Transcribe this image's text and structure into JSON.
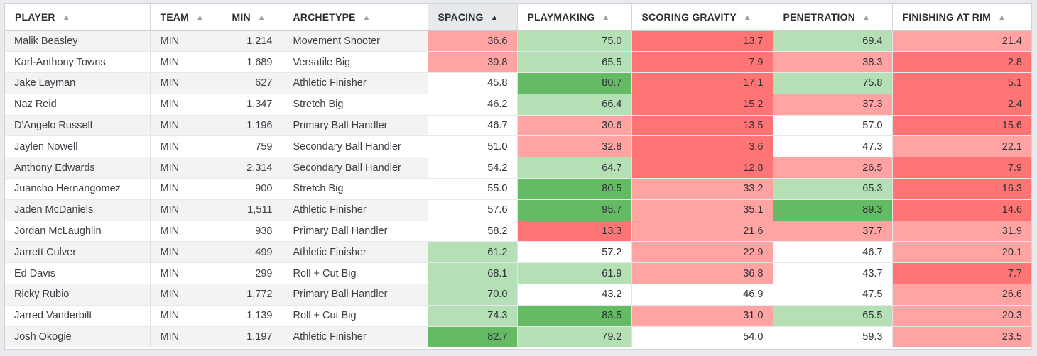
{
  "colors": {
    "red_strong": "#ff7474",
    "red_light": "#ffa3a3",
    "green_light": "#b5dfb5",
    "green_strong": "#64bb64",
    "neutral": "#ffffff"
  },
  "table": {
    "columns": [
      {
        "key": "player",
        "label": "PLAYER",
        "sort_icon": "sort-asc-icon"
      },
      {
        "key": "team",
        "label": "TEAM",
        "sort_icon": "sort-asc-icon"
      },
      {
        "key": "min",
        "label": "MIN",
        "sort_icon": "sort-asc-icon"
      },
      {
        "key": "archetype",
        "label": "ARCHETYPE",
        "sort_icon": "sort-asc-icon"
      },
      {
        "key": "spacing",
        "label": "SPACING",
        "sort_icon": "sort-asc-icon",
        "sorted": true
      },
      {
        "key": "playmaking",
        "label": "PLAYMAKING",
        "sort_icon": "sort-asc-icon"
      },
      {
        "key": "scoring_gravity",
        "label": "SCORING GRAVITY",
        "sort_icon": "sort-asc-icon"
      },
      {
        "key": "penetration",
        "label": "PENETRATION",
        "sort_icon": "sort-asc-icon"
      },
      {
        "key": "finishing",
        "label": "FINISHING AT RIM",
        "sort_icon": "sort-asc-icon"
      }
    ],
    "rows": [
      {
        "player": "Malik Beasley",
        "team": "MIN",
        "min": "1,214",
        "archetype": "Movement Shooter",
        "spacing": {
          "v": "36.6",
          "c": "red_light"
        },
        "playmaking": {
          "v": "75.0",
          "c": "green_light"
        },
        "scoring_gravity": {
          "v": "13.7",
          "c": "red_strong"
        },
        "penetration": {
          "v": "69.4",
          "c": "green_light"
        },
        "finishing": {
          "v": "21.4",
          "c": "red_light"
        }
      },
      {
        "player": "Karl-Anthony Towns",
        "team": "MIN",
        "min": "1,689",
        "archetype": "Versatile Big",
        "spacing": {
          "v": "39.8",
          "c": "red_light"
        },
        "playmaking": {
          "v": "65.5",
          "c": "green_light"
        },
        "scoring_gravity": {
          "v": "7.9",
          "c": "red_strong"
        },
        "penetration": {
          "v": "38.3",
          "c": "red_light"
        },
        "finishing": {
          "v": "2.8",
          "c": "red_strong"
        }
      },
      {
        "player": "Jake Layman",
        "team": "MIN",
        "min": "627",
        "archetype": "Athletic Finisher",
        "spacing": {
          "v": "45.8",
          "c": "neutral"
        },
        "playmaking": {
          "v": "80.7",
          "c": "green_strong"
        },
        "scoring_gravity": {
          "v": "17.1",
          "c": "red_strong"
        },
        "penetration": {
          "v": "75.8",
          "c": "green_light"
        },
        "finishing": {
          "v": "5.1",
          "c": "red_strong"
        }
      },
      {
        "player": "Naz Reid",
        "team": "MIN",
        "min": "1,347",
        "archetype": "Stretch Big",
        "spacing": {
          "v": "46.2",
          "c": "neutral"
        },
        "playmaking": {
          "v": "66.4",
          "c": "green_light"
        },
        "scoring_gravity": {
          "v": "15.2",
          "c": "red_strong"
        },
        "penetration": {
          "v": "37.3",
          "c": "red_light"
        },
        "finishing": {
          "v": "2.4",
          "c": "red_strong"
        }
      },
      {
        "player": "D'Angelo Russell",
        "team": "MIN",
        "min": "1,196",
        "archetype": "Primary Ball Handler",
        "spacing": {
          "v": "46.7",
          "c": "neutral"
        },
        "playmaking": {
          "v": "30.6",
          "c": "red_light"
        },
        "scoring_gravity": {
          "v": "13.5",
          "c": "red_strong"
        },
        "penetration": {
          "v": "57.0",
          "c": "neutral"
        },
        "finishing": {
          "v": "15.6",
          "c": "red_strong"
        }
      },
      {
        "player": "Jaylen Nowell",
        "team": "MIN",
        "min": "759",
        "archetype": "Secondary Ball Handler",
        "spacing": {
          "v": "51.0",
          "c": "neutral"
        },
        "playmaking": {
          "v": "32.8",
          "c": "red_light"
        },
        "scoring_gravity": {
          "v": "3.6",
          "c": "red_strong"
        },
        "penetration": {
          "v": "47.3",
          "c": "neutral"
        },
        "finishing": {
          "v": "22.1",
          "c": "red_light"
        }
      },
      {
        "player": "Anthony Edwards",
        "team": "MIN",
        "min": "2,314",
        "archetype": "Secondary Ball Handler",
        "spacing": {
          "v": "54.2",
          "c": "neutral"
        },
        "playmaking": {
          "v": "64.7",
          "c": "green_light"
        },
        "scoring_gravity": {
          "v": "12.8",
          "c": "red_strong"
        },
        "penetration": {
          "v": "26.5",
          "c": "red_light"
        },
        "finishing": {
          "v": "7.9",
          "c": "red_strong"
        }
      },
      {
        "player": "Juancho Hernangomez",
        "team": "MIN",
        "min": "900",
        "archetype": "Stretch Big",
        "spacing": {
          "v": "55.0",
          "c": "neutral"
        },
        "playmaking": {
          "v": "80.5",
          "c": "green_strong"
        },
        "scoring_gravity": {
          "v": "33.2",
          "c": "red_light"
        },
        "penetration": {
          "v": "65.3",
          "c": "green_light"
        },
        "finishing": {
          "v": "16.3",
          "c": "red_strong"
        }
      },
      {
        "player": "Jaden McDaniels",
        "team": "MIN",
        "min": "1,511",
        "archetype": "Athletic Finisher",
        "spacing": {
          "v": "57.6",
          "c": "neutral"
        },
        "playmaking": {
          "v": "95.7",
          "c": "green_strong"
        },
        "scoring_gravity": {
          "v": "35.1",
          "c": "red_light"
        },
        "penetration": {
          "v": "89.3",
          "c": "green_strong"
        },
        "finishing": {
          "v": "14.6",
          "c": "red_strong"
        }
      },
      {
        "player": "Jordan McLaughlin",
        "team": "MIN",
        "min": "938",
        "archetype": "Primary Ball Handler",
        "spacing": {
          "v": "58.2",
          "c": "neutral"
        },
        "playmaking": {
          "v": "13.3",
          "c": "red_strong"
        },
        "scoring_gravity": {
          "v": "21.6",
          "c": "red_light"
        },
        "penetration": {
          "v": "37.7",
          "c": "red_light"
        },
        "finishing": {
          "v": "31.9",
          "c": "red_light"
        }
      },
      {
        "player": "Jarrett Culver",
        "team": "MIN",
        "min": "499",
        "archetype": "Athletic Finisher",
        "spacing": {
          "v": "61.2",
          "c": "green_light"
        },
        "playmaking": {
          "v": "57.2",
          "c": "neutral"
        },
        "scoring_gravity": {
          "v": "22.9",
          "c": "red_light"
        },
        "penetration": {
          "v": "46.7",
          "c": "neutral"
        },
        "finishing": {
          "v": "20.1",
          "c": "red_light"
        }
      },
      {
        "player": "Ed Davis",
        "team": "MIN",
        "min": "299",
        "archetype": "Roll + Cut Big",
        "spacing": {
          "v": "68.1",
          "c": "green_light"
        },
        "playmaking": {
          "v": "61.9",
          "c": "green_light"
        },
        "scoring_gravity": {
          "v": "36.8",
          "c": "red_light"
        },
        "penetration": {
          "v": "43.7",
          "c": "neutral"
        },
        "finishing": {
          "v": "7.7",
          "c": "red_strong"
        }
      },
      {
        "player": "Ricky Rubio",
        "team": "MIN",
        "min": "1,772",
        "archetype": "Primary Ball Handler",
        "spacing": {
          "v": "70.0",
          "c": "green_light"
        },
        "playmaking": {
          "v": "43.2",
          "c": "neutral"
        },
        "scoring_gravity": {
          "v": "46.9",
          "c": "neutral"
        },
        "penetration": {
          "v": "47.5",
          "c": "neutral"
        },
        "finishing": {
          "v": "26.6",
          "c": "red_light"
        }
      },
      {
        "player": "Jarred Vanderbilt",
        "team": "MIN",
        "min": "1,139",
        "archetype": "Roll + Cut Big",
        "spacing": {
          "v": "74.3",
          "c": "green_light"
        },
        "playmaking": {
          "v": "83.5",
          "c": "green_strong"
        },
        "scoring_gravity": {
          "v": "31.0",
          "c": "red_light"
        },
        "penetration": {
          "v": "65.5",
          "c": "green_light"
        },
        "finishing": {
          "v": "20.3",
          "c": "red_light"
        }
      },
      {
        "player": "Josh Okogie",
        "team": "MIN",
        "min": "1,197",
        "archetype": "Athletic Finisher",
        "spacing": {
          "v": "82.7",
          "c": "green_strong"
        },
        "playmaking": {
          "v": "79.2",
          "c": "green_light"
        },
        "scoring_gravity": {
          "v": "54.0",
          "c": "neutral"
        },
        "penetration": {
          "v": "59.3",
          "c": "neutral"
        },
        "finishing": {
          "v": "23.5",
          "c": "red_light"
        }
      }
    ]
  }
}
